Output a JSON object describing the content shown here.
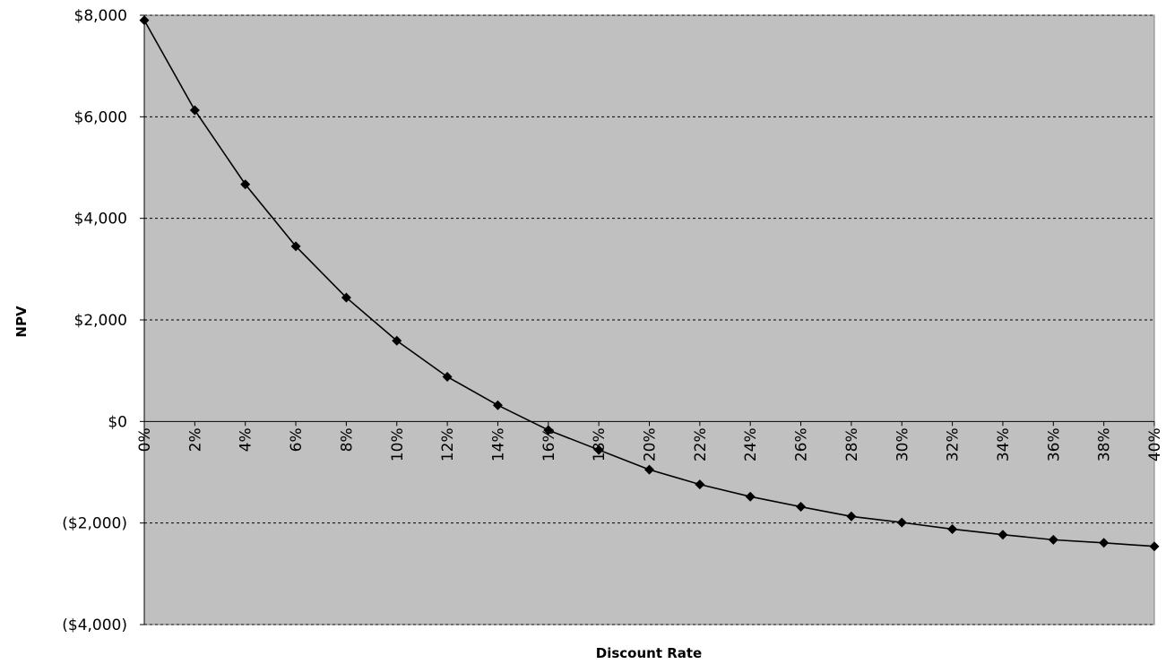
{
  "chart_data": {
    "type": "line",
    "xlabel": "Discount Rate",
    "ylabel": "NPV",
    "categories": [
      "0%",
      "2%",
      "4%",
      "6%",
      "8%",
      "10%",
      "12%",
      "14%",
      "16%",
      "18%",
      "20%",
      "22%",
      "24%",
      "26%",
      "28%",
      "30%",
      "32%",
      "34%",
      "36%",
      "38%",
      "40%"
    ],
    "x": [
      0,
      2,
      4,
      6,
      8,
      10,
      12,
      14,
      16,
      18,
      20,
      22,
      24,
      26,
      28,
      30,
      32,
      34,
      36,
      38,
      40
    ],
    "series": [
      {
        "values": [
          7900,
          6130,
          4670,
          3450,
          2440,
          1590,
          880,
          320,
          -170,
          -560,
          -950,
          -1240,
          -1480,
          -1680,
          -1870,
          -1990,
          -2120,
          -2230,
          -2330,
          -2390,
          -2460
        ]
      }
    ],
    "ylim": [
      -4000,
      8000
    ],
    "y_ticks": [
      -4000,
      -2000,
      0,
      2000,
      4000,
      6000,
      8000
    ],
    "y_tick_labels": [
      "($4,000)",
      "($2,000)",
      "$0",
      "$2,000",
      "$4,000",
      "$6,000",
      "$8,000"
    ],
    "xlim": [
      0,
      40
    ],
    "grid": "horizontal-dotted",
    "legend": "none",
    "colors": {
      "plot_background": "#c0c0c0",
      "line": "#000000",
      "marker": "#000000",
      "grid": "#000000"
    },
    "marker": "diamond"
  }
}
